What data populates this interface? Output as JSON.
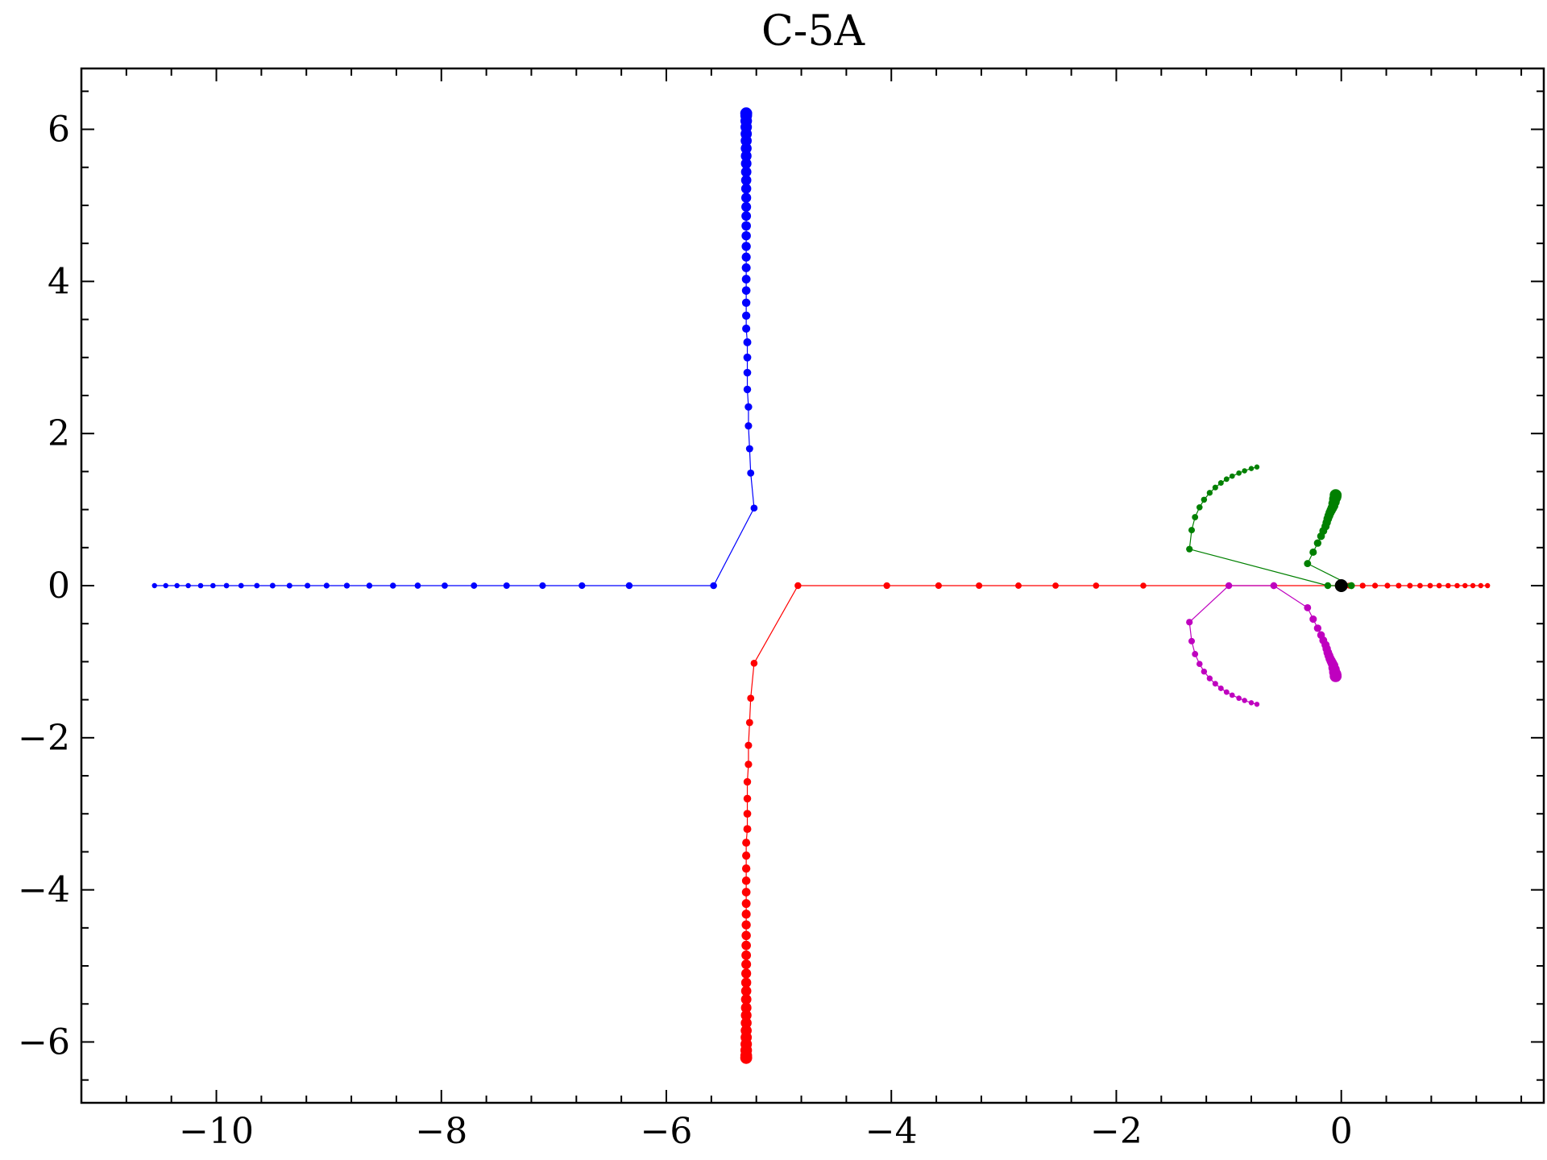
{
  "chart_data": {
    "type": "scatter",
    "title": "C-5A",
    "xlabel": "",
    "ylabel": "",
    "xlim": [
      -11.2,
      1.8
    ],
    "ylim": [
      -6.8,
      6.8
    ],
    "x_ticks": [
      -10,
      -8,
      -6,
      -4,
      -2,
      0
    ],
    "x_tick_labels": [
      "−10",
      "−8",
      "−6",
      "−4",
      "−2",
      "0"
    ],
    "y_ticks": [
      -6,
      -4,
      -2,
      0,
      2,
      4,
      6
    ],
    "y_tick_labels": [
      "−6",
      "−4",
      "−2",
      "0",
      "2",
      "4",
      "6"
    ],
    "grid": false,
    "legend": "none",
    "series": [
      {
        "color": "#0000ff",
        "points": [
          [
            -10.55,
            0
          ],
          [
            -10.45,
            0
          ],
          [
            -10.35,
            0
          ],
          [
            -10.25,
            0
          ],
          [
            -10.14,
            0
          ],
          [
            -10.03,
            0
          ],
          [
            -9.91,
            0
          ],
          [
            -9.78,
            0
          ],
          [
            -9.64,
            0
          ],
          [
            -9.5,
            0
          ],
          [
            -9.35,
            0
          ],
          [
            -9.19,
            0
          ],
          [
            -9.02,
            0
          ],
          [
            -8.84,
            0
          ],
          [
            -8.64,
            0
          ],
          [
            -8.43,
            0
          ],
          [
            -8.21,
            0
          ],
          [
            -7.97,
            0
          ],
          [
            -7.71,
            0
          ],
          [
            -7.42,
            0
          ],
          [
            -7.1,
            0
          ],
          [
            -6.75,
            0
          ],
          [
            -6.33,
            0
          ],
          [
            -5.58,
            0
          ],
          [
            -5.22,
            1.02
          ],
          [
            -5.25,
            1.48
          ],
          [
            -5.26,
            1.8
          ],
          [
            -5.27,
            2.1
          ],
          [
            -5.27,
            2.35
          ],
          [
            -5.28,
            2.58
          ],
          [
            -5.28,
            2.8
          ],
          [
            -5.28,
            3.0
          ],
          [
            -5.28,
            3.2
          ],
          [
            -5.29,
            3.38
          ],
          [
            -5.29,
            3.55
          ],
          [
            -5.29,
            3.72
          ],
          [
            -5.29,
            3.88
          ],
          [
            -5.29,
            4.03
          ],
          [
            -5.29,
            4.18
          ],
          [
            -5.29,
            4.32
          ],
          [
            -5.29,
            4.46
          ],
          [
            -5.29,
            4.6
          ],
          [
            -5.29,
            4.73
          ],
          [
            -5.29,
            4.86
          ],
          [
            -5.29,
            4.98
          ],
          [
            -5.29,
            5.1
          ],
          [
            -5.29,
            5.22
          ],
          [
            -5.29,
            5.33
          ],
          [
            -5.29,
            5.44
          ],
          [
            -5.29,
            5.55
          ],
          [
            -5.29,
            5.65
          ],
          [
            -5.29,
            5.75
          ],
          [
            -5.29,
            5.85
          ],
          [
            -5.29,
            5.94
          ],
          [
            -5.29,
            6.03
          ],
          [
            -5.29,
            6.11
          ],
          [
            -5.29,
            6.18
          ],
          [
            -5.29,
            6.21
          ]
        ]
      },
      {
        "color": "#ff0000",
        "points": [
          [
            1.3,
            0
          ],
          [
            1.24,
            0
          ],
          [
            1.17,
            0
          ],
          [
            1.1,
            0
          ],
          [
            1.03,
            0
          ],
          [
            0.95,
            0
          ],
          [
            0.87,
            0
          ],
          [
            0.79,
            0
          ],
          [
            0.7,
            0
          ],
          [
            0.61,
            0
          ],
          [
            0.51,
            0
          ],
          [
            0.41,
            0
          ],
          [
            0.3,
            0
          ],
          [
            0.19,
            0
          ],
          [
            0.07,
            0
          ],
          [
            -1.76,
            0
          ],
          [
            -2.18,
            0
          ],
          [
            -2.54,
            0
          ],
          [
            -2.87,
            0
          ],
          [
            -3.22,
            0
          ],
          [
            -3.58,
            0
          ],
          [
            -4.04,
            0
          ],
          [
            -4.83,
            0
          ],
          [
            -5.22,
            -1.02
          ],
          [
            -5.25,
            -1.48
          ],
          [
            -5.26,
            -1.8
          ],
          [
            -5.27,
            -2.1
          ],
          [
            -5.27,
            -2.35
          ],
          [
            -5.28,
            -2.58
          ],
          [
            -5.28,
            -2.8
          ],
          [
            -5.28,
            -3.0
          ],
          [
            -5.28,
            -3.2
          ],
          [
            -5.29,
            -3.38
          ],
          [
            -5.29,
            -3.55
          ],
          [
            -5.29,
            -3.72
          ],
          [
            -5.29,
            -3.88
          ],
          [
            -5.29,
            -4.03
          ],
          [
            -5.29,
            -4.18
          ],
          [
            -5.29,
            -4.32
          ],
          [
            -5.29,
            -4.46
          ],
          [
            -5.29,
            -4.6
          ],
          [
            -5.29,
            -4.73
          ],
          [
            -5.29,
            -4.86
          ],
          [
            -5.29,
            -4.98
          ],
          [
            -5.29,
            -5.1
          ],
          [
            -5.29,
            -5.22
          ],
          [
            -5.29,
            -5.33
          ],
          [
            -5.29,
            -5.44
          ],
          [
            -5.29,
            -5.55
          ],
          [
            -5.29,
            -5.65
          ],
          [
            -5.29,
            -5.75
          ],
          [
            -5.29,
            -5.85
          ],
          [
            -5.29,
            -5.94
          ],
          [
            -5.29,
            -6.03
          ],
          [
            -5.29,
            -6.11
          ],
          [
            -5.29,
            -6.18
          ],
          [
            -5.29,
            -6.21
          ]
        ]
      },
      {
        "color": "#008000",
        "points": [
          [
            -0.75,
            1.56
          ],
          [
            -0.8,
            1.54
          ],
          [
            -0.86,
            1.51
          ],
          [
            -0.91,
            1.48
          ],
          [
            -0.97,
            1.44
          ],
          [
            -1.02,
            1.4
          ],
          [
            -1.07,
            1.35
          ],
          [
            -1.12,
            1.29
          ],
          [
            -1.17,
            1.22
          ],
          [
            -1.22,
            1.13
          ],
          [
            -1.26,
            1.03
          ],
          [
            -1.3,
            0.9
          ],
          [
            -1.33,
            0.73
          ],
          [
            -1.35,
            0.48
          ],
          [
            -0.12,
            0
          ],
          [
            0.09,
            0
          ],
          [
            -0.3,
            0.29
          ],
          [
            -0.25,
            0.44
          ],
          [
            -0.21,
            0.56
          ],
          [
            -0.18,
            0.65
          ],
          [
            -0.16,
            0.72
          ],
          [
            -0.14,
            0.78
          ],
          [
            -0.13,
            0.83
          ],
          [
            -0.12,
            0.88
          ],
          [
            -0.11,
            0.92
          ],
          [
            -0.1,
            0.96
          ],
          [
            -0.09,
            0.99
          ],
          [
            -0.08,
            1.02
          ],
          [
            -0.07,
            1.05
          ],
          [
            -0.07,
            1.08
          ],
          [
            -0.06,
            1.1
          ],
          [
            -0.06,
            1.12
          ],
          [
            -0.06,
            1.14
          ],
          [
            -0.05,
            1.16
          ],
          [
            -0.05,
            1.17
          ],
          [
            -0.05,
            1.18
          ],
          [
            -0.05,
            1.19
          ]
        ]
      },
      {
        "color": "#bf00bf",
        "points": [
          [
            -0.75,
            -1.56
          ],
          [
            -0.8,
            -1.54
          ],
          [
            -0.86,
            -1.51
          ],
          [
            -0.91,
            -1.48
          ],
          [
            -0.97,
            -1.44
          ],
          [
            -1.02,
            -1.4
          ],
          [
            -1.07,
            -1.35
          ],
          [
            -1.12,
            -1.29
          ],
          [
            -1.17,
            -1.22
          ],
          [
            -1.22,
            -1.13
          ],
          [
            -1.26,
            -1.03
          ],
          [
            -1.3,
            -0.9
          ],
          [
            -1.33,
            -0.73
          ],
          [
            -1.35,
            -0.48
          ],
          [
            -1.0,
            0
          ],
          [
            -0.6,
            0
          ],
          [
            -0.3,
            -0.29
          ],
          [
            -0.25,
            -0.44
          ],
          [
            -0.21,
            -0.56
          ],
          [
            -0.18,
            -0.65
          ],
          [
            -0.16,
            -0.72
          ],
          [
            -0.14,
            -0.78
          ],
          [
            -0.13,
            -0.83
          ],
          [
            -0.12,
            -0.88
          ],
          [
            -0.11,
            -0.92
          ],
          [
            -0.1,
            -0.96
          ],
          [
            -0.09,
            -0.99
          ],
          [
            -0.08,
            -1.02
          ],
          [
            -0.07,
            -1.05
          ],
          [
            -0.07,
            -1.08
          ],
          [
            -0.06,
            -1.1
          ],
          [
            -0.06,
            -1.12
          ],
          [
            -0.06,
            -1.14
          ],
          [
            -0.05,
            -1.16
          ],
          [
            -0.05,
            -1.17
          ],
          [
            -0.05,
            -1.18
          ],
          [
            -0.05,
            -1.19
          ]
        ]
      },
      {
        "color": "#000000",
        "points": [
          [
            0,
            0
          ]
        ]
      }
    ]
  }
}
